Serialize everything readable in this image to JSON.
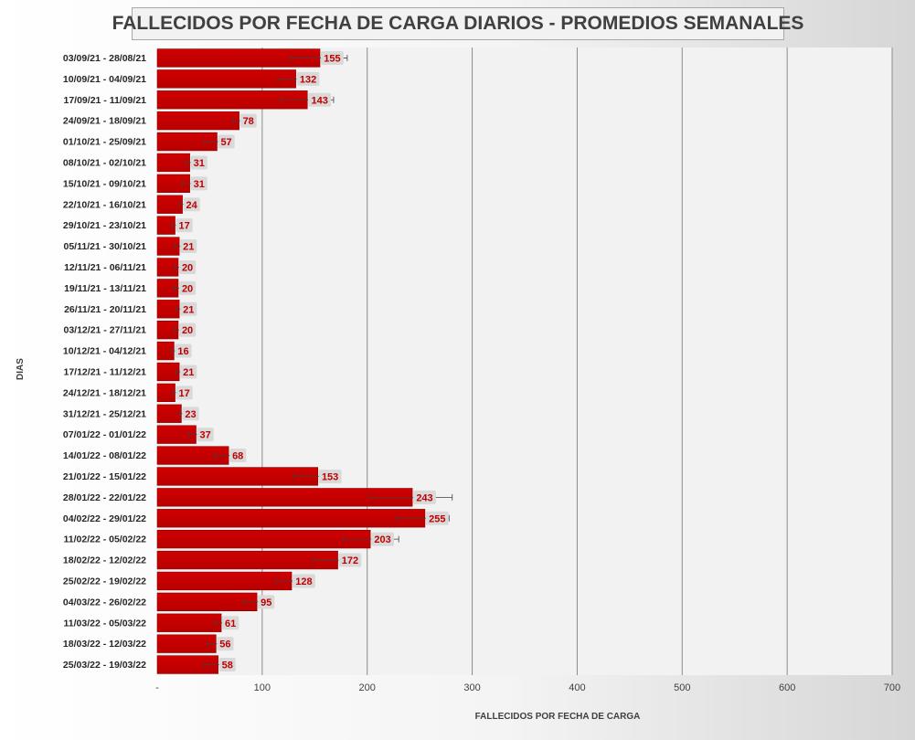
{
  "chart_data": {
    "type": "bar",
    "orientation": "horizontal",
    "title": "FALLECIDOS POR FECHA DE CARGA DIARIOS - PROMEDIOS SEMANALES",
    "xlabel": "FALLECIDOS POR FECHA DE CARGA",
    "ylabel": "DIAS",
    "xlim": [
      0,
      700
    ],
    "x_ticks": [
      "-",
      "100",
      "200",
      "300",
      "400",
      "500",
      "600",
      "700"
    ],
    "grid": "vertical",
    "error_bars": true,
    "bar_color": "#c00000",
    "label_color": "#c00000",
    "label_bg": "#d9d9d9",
    "categories": [
      "03/09/21 - 28/08/21",
      "10/09/21 - 04/09/21",
      "17/09/21 - 11/09/21",
      "24/09/21 - 18/09/21",
      "01/10/21 - 25/09/21",
      "08/10/21 - 02/10/21",
      "15/10/21 - 09/10/21",
      "22/10/21 - 16/10/21",
      "29/10/21 - 23/10/21",
      "05/11/21 - 30/10/21",
      "12/11/21 - 06/11/21",
      "19/11/21 - 13/11/21",
      "26/11/21 - 20/11/21",
      "03/12/21 - 27/11/21",
      "10/12/21 - 04/12/21",
      "17/12/21 - 11/12/21",
      "24/12/21 - 18/12/21",
      "31/12/21 - 25/12/21",
      "07/01/22 - 01/01/22",
      "14/01/22 - 08/01/22",
      "21/01/22 - 15/01/22",
      "28/01/22 - 22/01/22",
      "04/02/22 - 29/01/22",
      "11/02/22 - 05/02/22",
      "18/02/22 - 12/02/22",
      "25/02/22 - 19/02/22",
      "04/03/22 - 26/02/22",
      "11/03/22 - 05/03/22",
      "18/03/22 - 12/03/22",
      "25/03/22 - 19/03/22"
    ],
    "values": [
      155,
      132,
      143,
      78,
      57,
      31,
      31,
      24,
      17,
      21,
      20,
      20,
      21,
      20,
      16,
      21,
      17,
      23,
      37,
      68,
      153,
      243,
      255,
      203,
      172,
      128,
      95,
      61,
      56,
      58
    ],
    "error_low": [
      127,
      115,
      118,
      72,
      45,
      27,
      24,
      21,
      14,
      17,
      17,
      16,
      18,
      17,
      13,
      18,
      15,
      21,
      30,
      55,
      130,
      203,
      228,
      177,
      148,
      113,
      82,
      55,
      48,
      45
    ],
    "error_high": [
      181,
      134,
      168,
      83,
      62,
      34,
      37,
      27,
      19,
      24,
      22,
      23,
      24,
      22,
      18,
      24,
      19,
      26,
      39,
      73,
      156,
      281,
      278,
      230,
      193,
      137,
      100,
      64,
      58,
      61
    ]
  }
}
